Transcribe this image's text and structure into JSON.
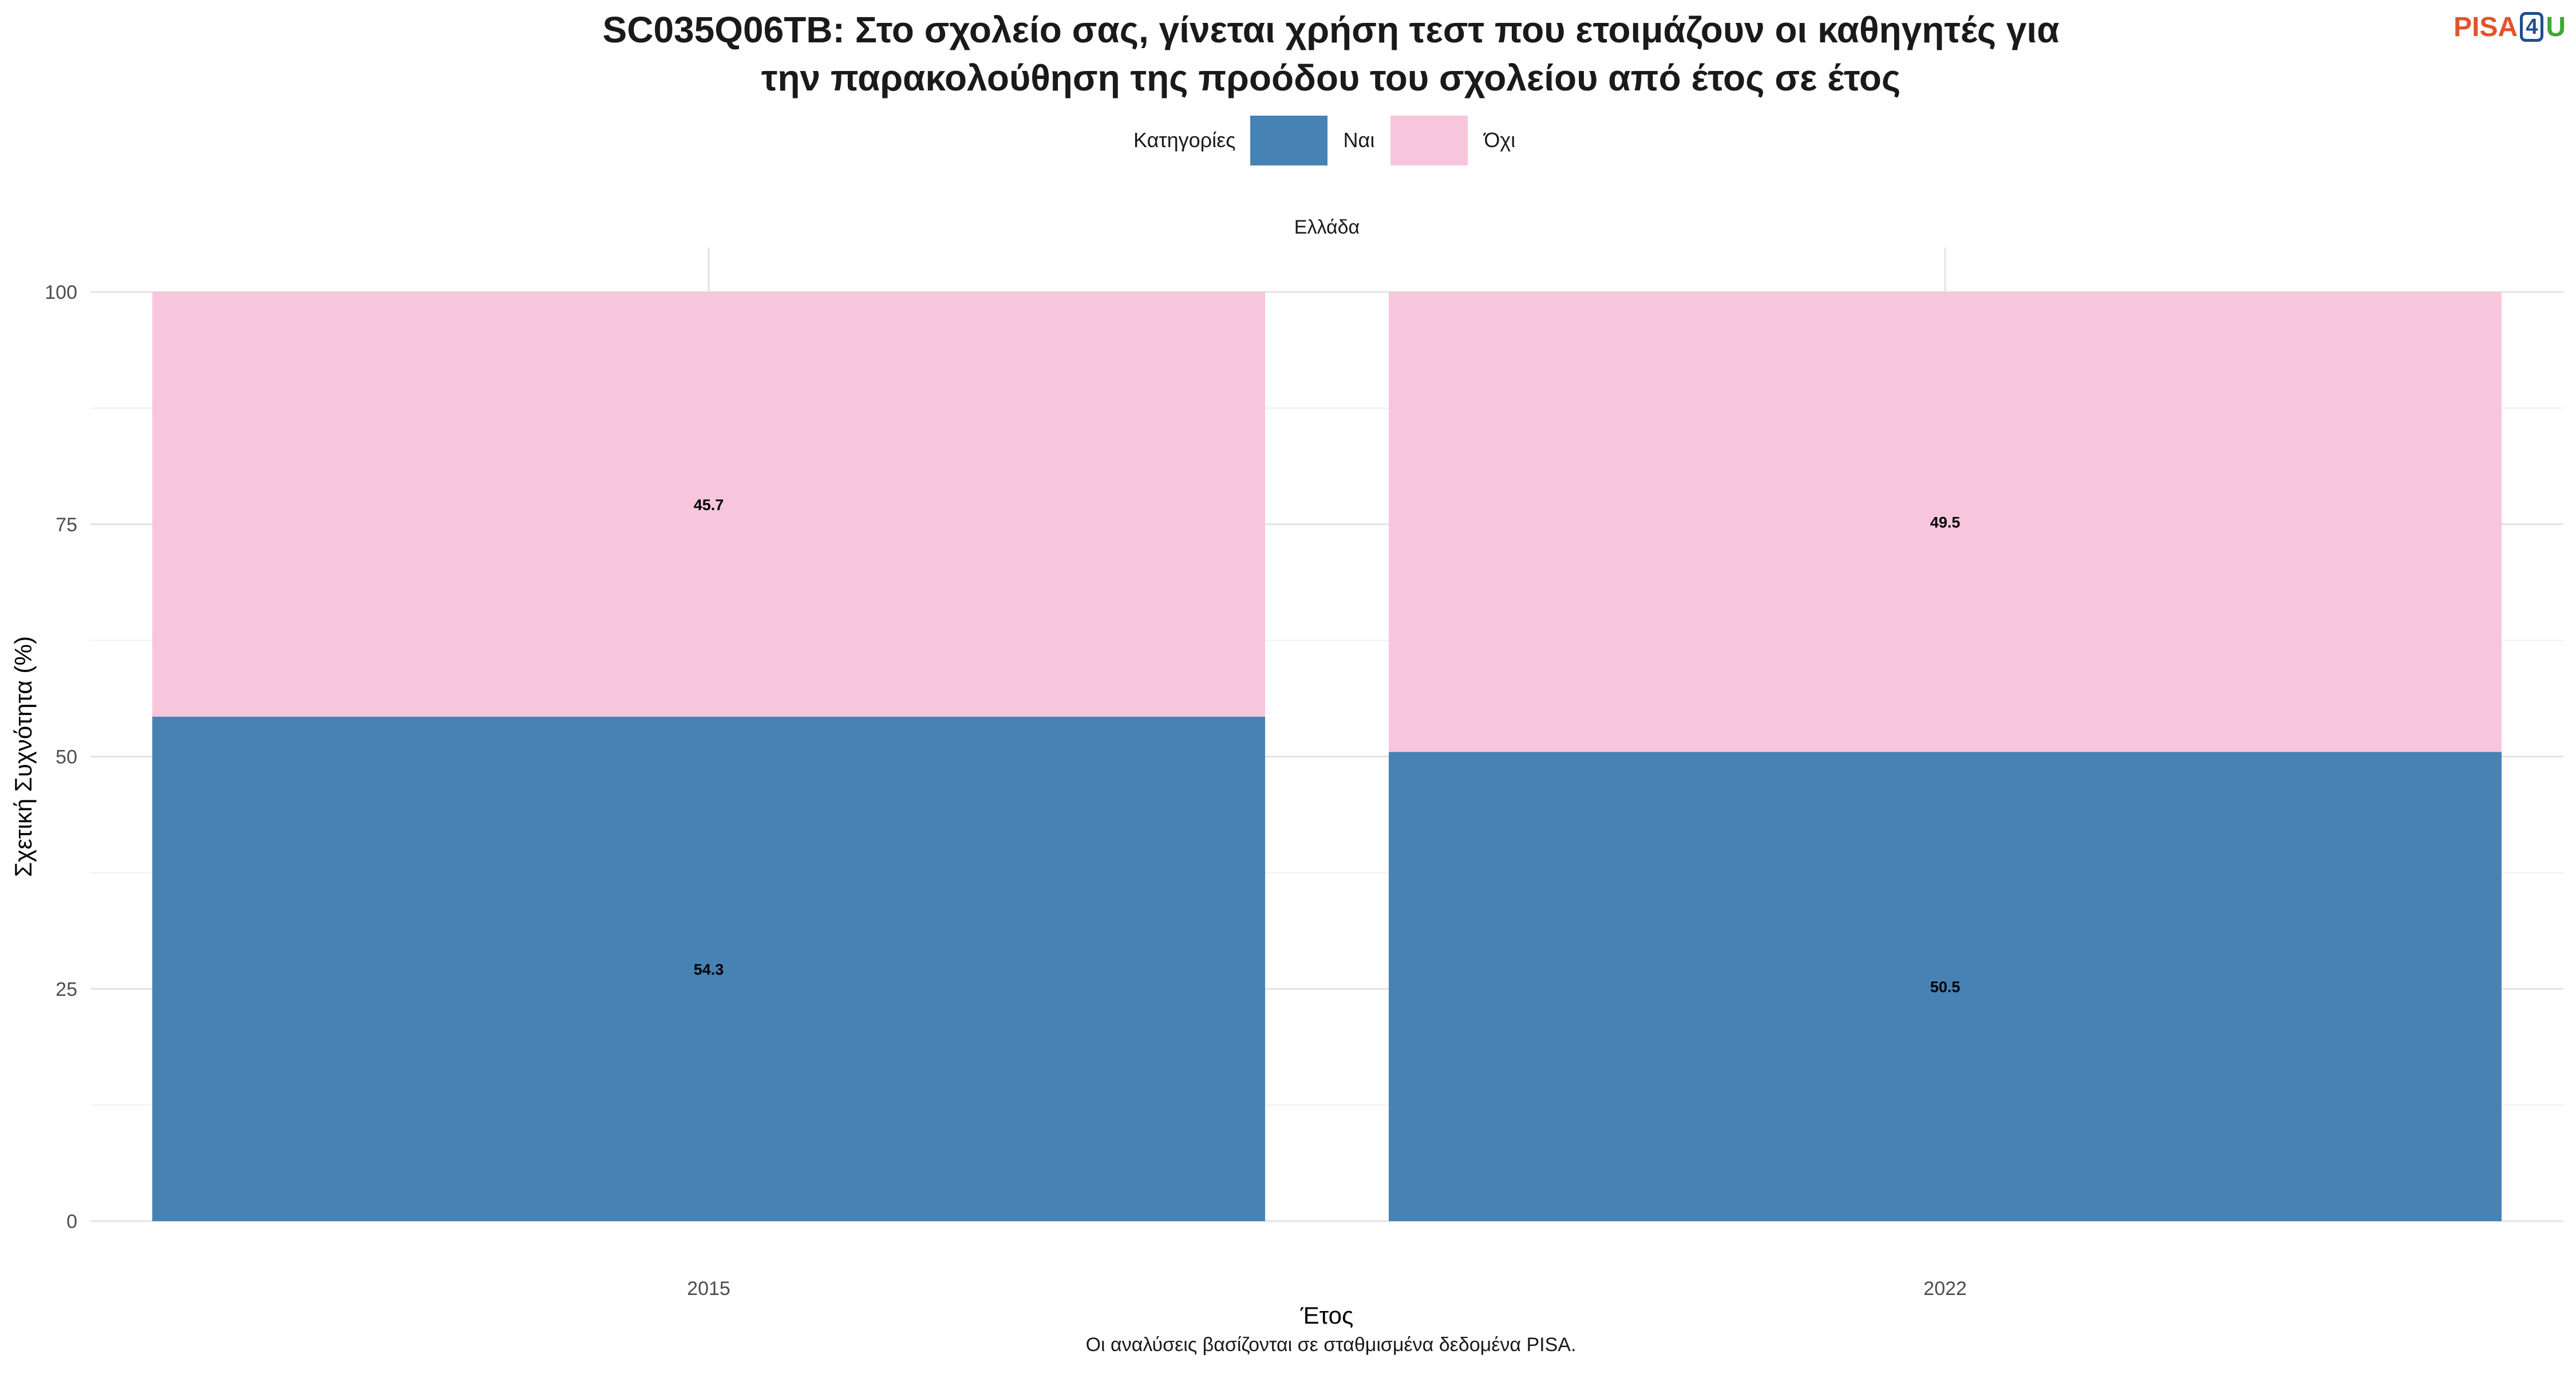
{
  "header": {
    "title_line1": "SC035Q06TB: Στο σχολείο σας, γίνεται χρήση τεστ που ετοιμάζουν οι καθηγητές για",
    "title_line2": "την παρακολούθηση της προόδου του σχολείου από έτος σε έτος",
    "logo": {
      "part1": "PISA",
      "part2": "4",
      "part3": "U"
    }
  },
  "legend": {
    "title": "Κατηγορίες",
    "items": [
      {
        "label": "Ναι",
        "color": "#4682b4"
      },
      {
        "label": "Όχι",
        "color": "#f7c6dc"
      }
    ]
  },
  "chart_data": {
    "type": "bar",
    "stacked": true,
    "panel_title": "Ελλάδα",
    "categories": [
      "2015",
      "2022"
    ],
    "series": [
      {
        "name": "Ναι",
        "color": "#4682b4",
        "values": [
          54.3,
          50.5
        ]
      },
      {
        "name": "Όχι",
        "color": "#f7c6dc",
        "values": [
          45.7,
          49.5
        ]
      }
    ],
    "xlabel": "Έτος",
    "ylabel": "Σχετική Συχνότητα (%)",
    "ylim": [
      0,
      100
    ],
    "yticks": [
      0,
      25,
      50,
      75,
      100
    ],
    "grid": true,
    "legend_position": "top"
  },
  "caption": "Οι αναλύσεις βασίζονται σε σταθμισμένα δεδομένα PISA."
}
